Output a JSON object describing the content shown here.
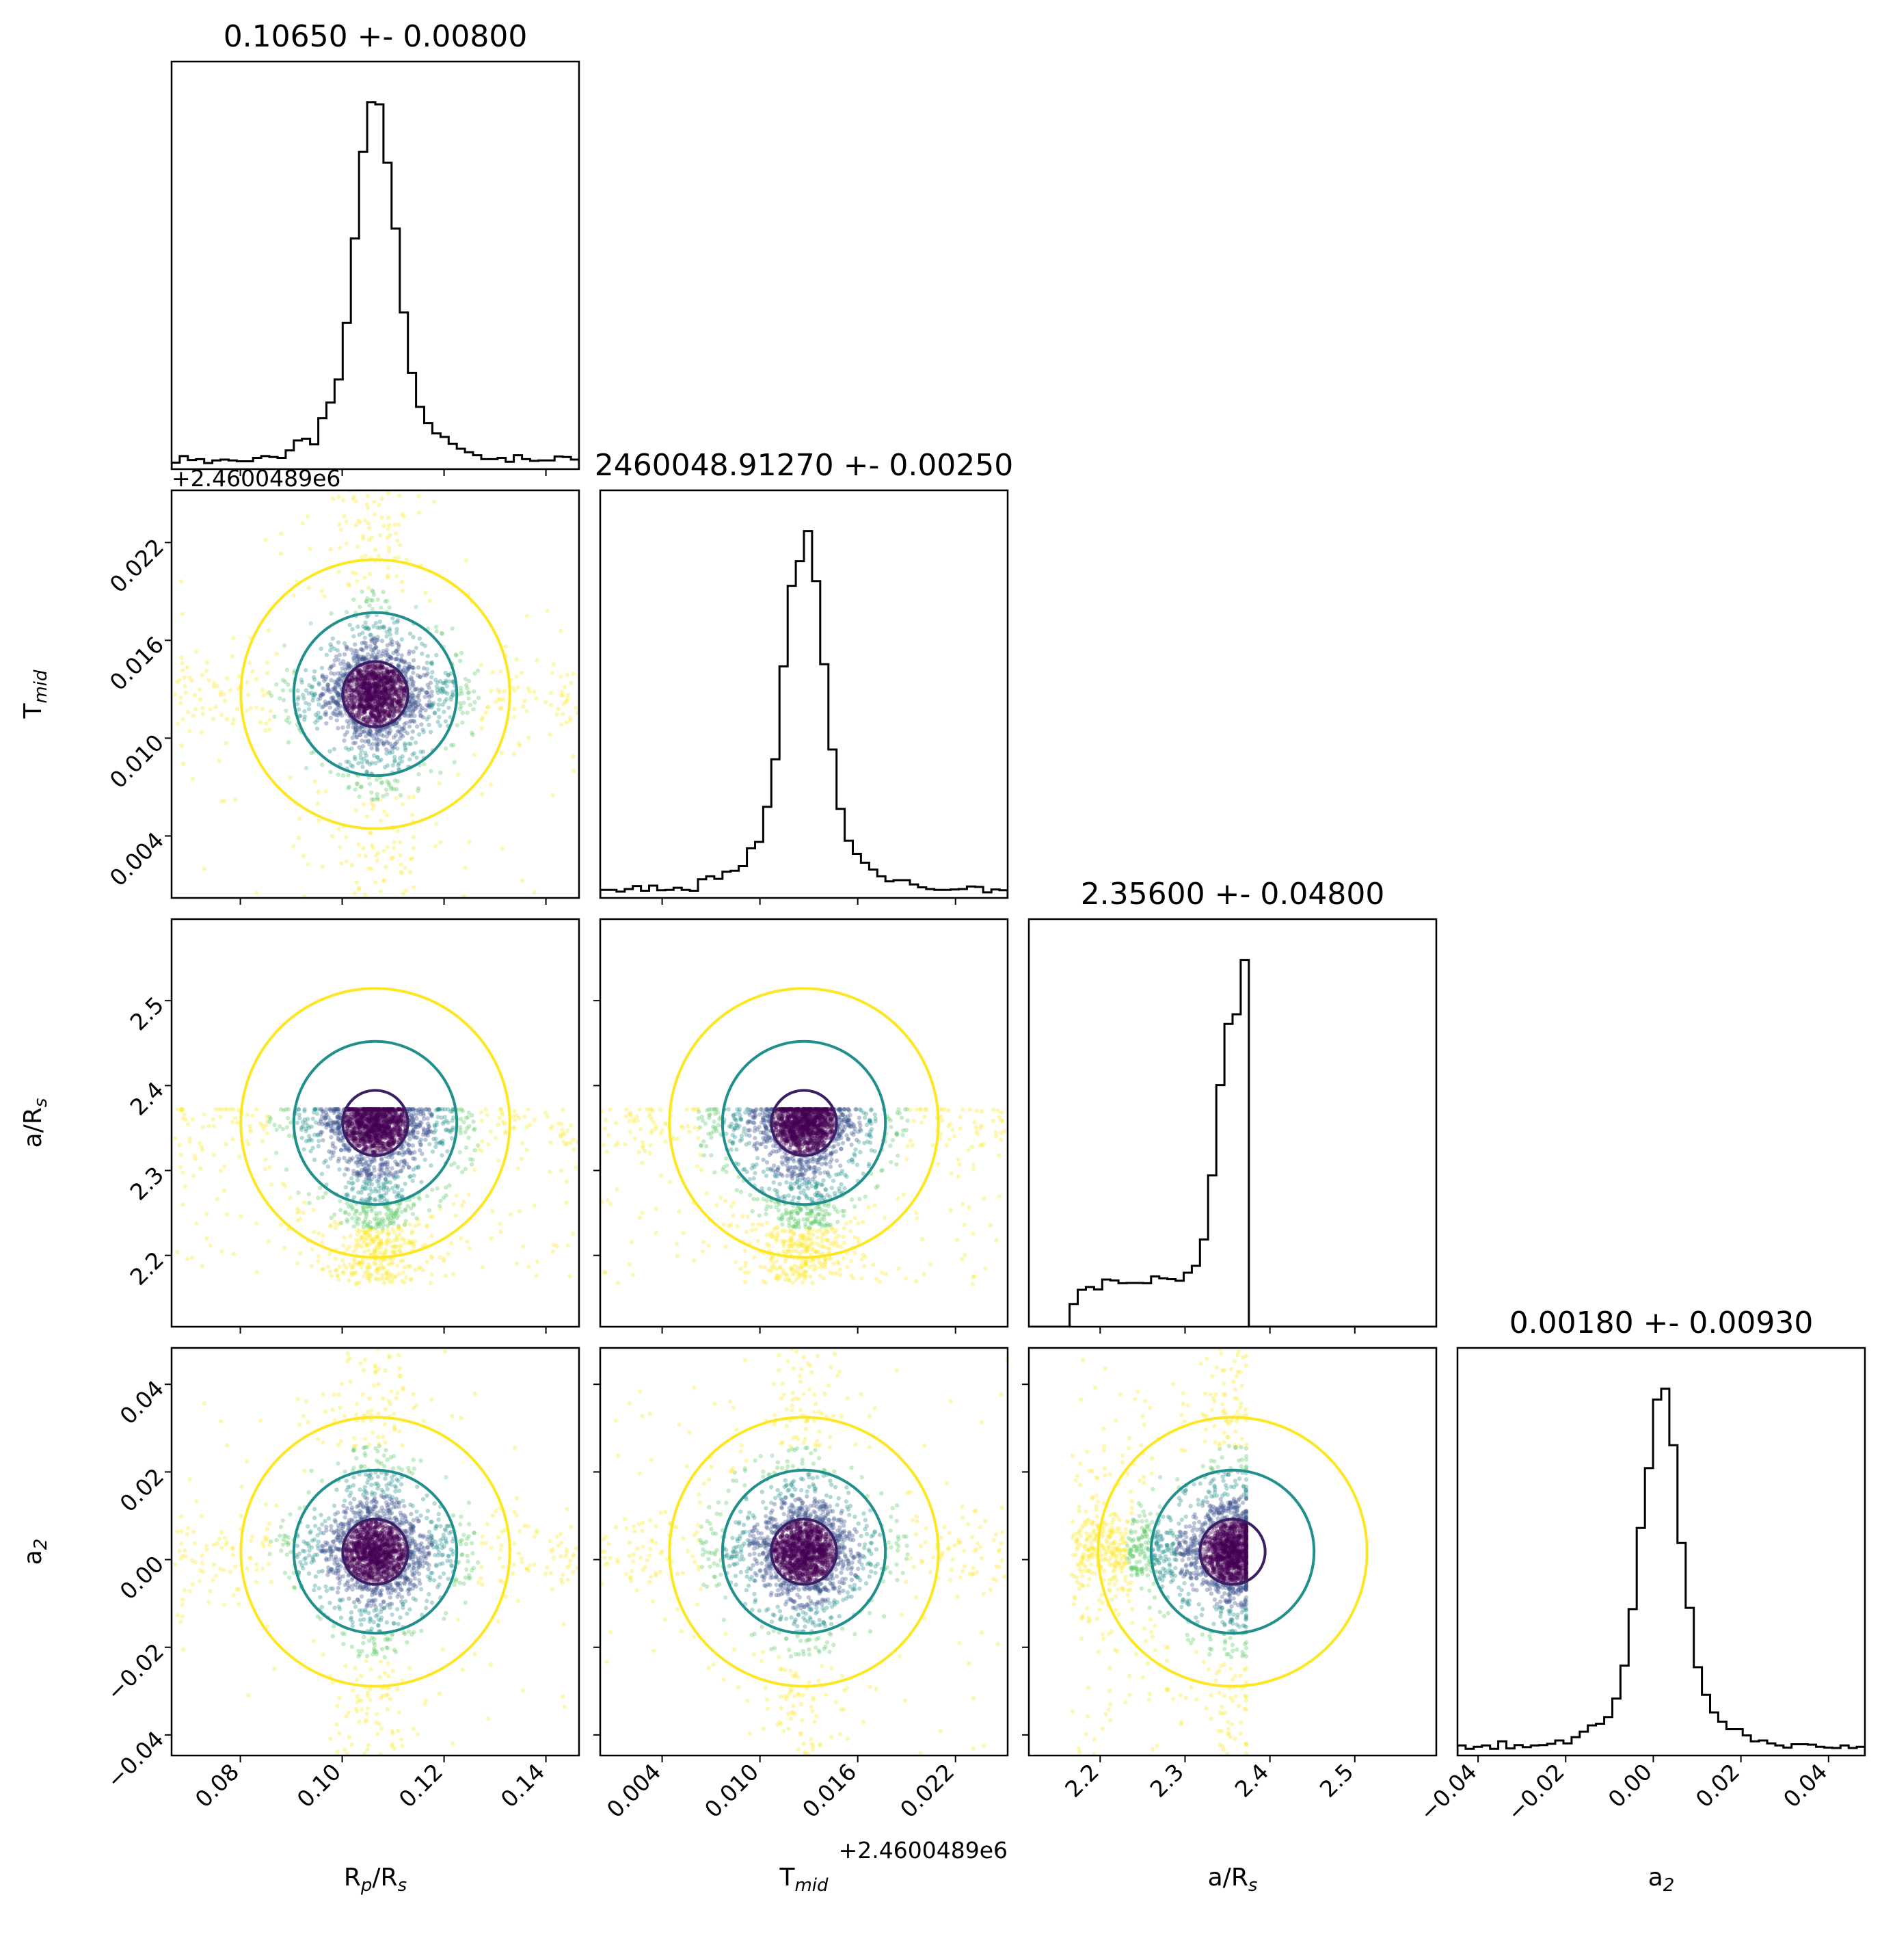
{
  "chart_data": {
    "type": "corner",
    "parameters": [
      {
        "id": "rp",
        "label": "Rₚ/Rₛ",
        "label_main": "R",
        "label_sub1": "p",
        "label_mid": "/R",
        "label_sub2": "s",
        "title": "0.10650 +- 0.00800",
        "mean": 0.1065,
        "sigma": 0.008,
        "range": [
          0.0665,
          0.1465
        ],
        "ticks": [
          0.08,
          0.1,
          0.12,
          0.14
        ],
        "tick_labels": [
          "0.08",
          "0.10",
          "0.12",
          "0.14"
        ],
        "offset": ""
      },
      {
        "id": "tmid",
        "label": "T_mid",
        "label_main": "T",
        "label_sub1": "mid",
        "title": "2460048.91270 +- 0.00250",
        "mean": 0.0127,
        "sigma": 0.0025,
        "range": [
          0.0002,
          0.0252
        ],
        "ticks": [
          0.004,
          0.01,
          0.016,
          0.022
        ],
        "tick_labels": [
          "0.004",
          "0.010",
          "0.016",
          "0.022"
        ],
        "offset": "+2.4600489e6"
      },
      {
        "id": "ars",
        "label": "a/Rₛ",
        "label_main": "a/R",
        "label_sub1": "s",
        "title": "2.35600 +- 0.04800",
        "mean": 2.356,
        "sigma": 0.048,
        "range": [
          2.116,
          2.596
        ],
        "ticks": [
          2.2,
          2.3,
          2.4,
          2.5
        ],
        "tick_labels": [
          "2.2",
          "2.3",
          "2.4",
          "2.5"
        ],
        "offset": "",
        "upper_cut": 2.372,
        "lower_cut": 2.166
      },
      {
        "id": "a2",
        "label": "a₂",
        "label_main": "a",
        "label_sub1": "2",
        "title": "0.00180 +- 0.00930",
        "mean": 0.0018,
        "sigma": 0.0093,
        "range": [
          -0.0447,
          0.0483
        ],
        "ticks": [
          -0.04,
          -0.02,
          0.0,
          0.02,
          0.04
        ],
        "tick_labels": [
          "−0.04",
          "−0.02",
          "0.00",
          "0.02",
          "0.04"
        ],
        "offset": ""
      }
    ],
    "histogram_bins": 50,
    "contour_levels": [
      {
        "level": "inner",
        "color": "#3b1f66"
      },
      {
        "level": "middle",
        "color": "#21908c"
      },
      {
        "level": "outer",
        "color": "#fde725"
      }
    ],
    "scatter_colormap": [
      "#440154",
      "#3b528b",
      "#21908c",
      "#5dc863",
      "#fde725"
    ],
    "histogram_color": "#000000",
    "grid": false,
    "legend": "none"
  }
}
